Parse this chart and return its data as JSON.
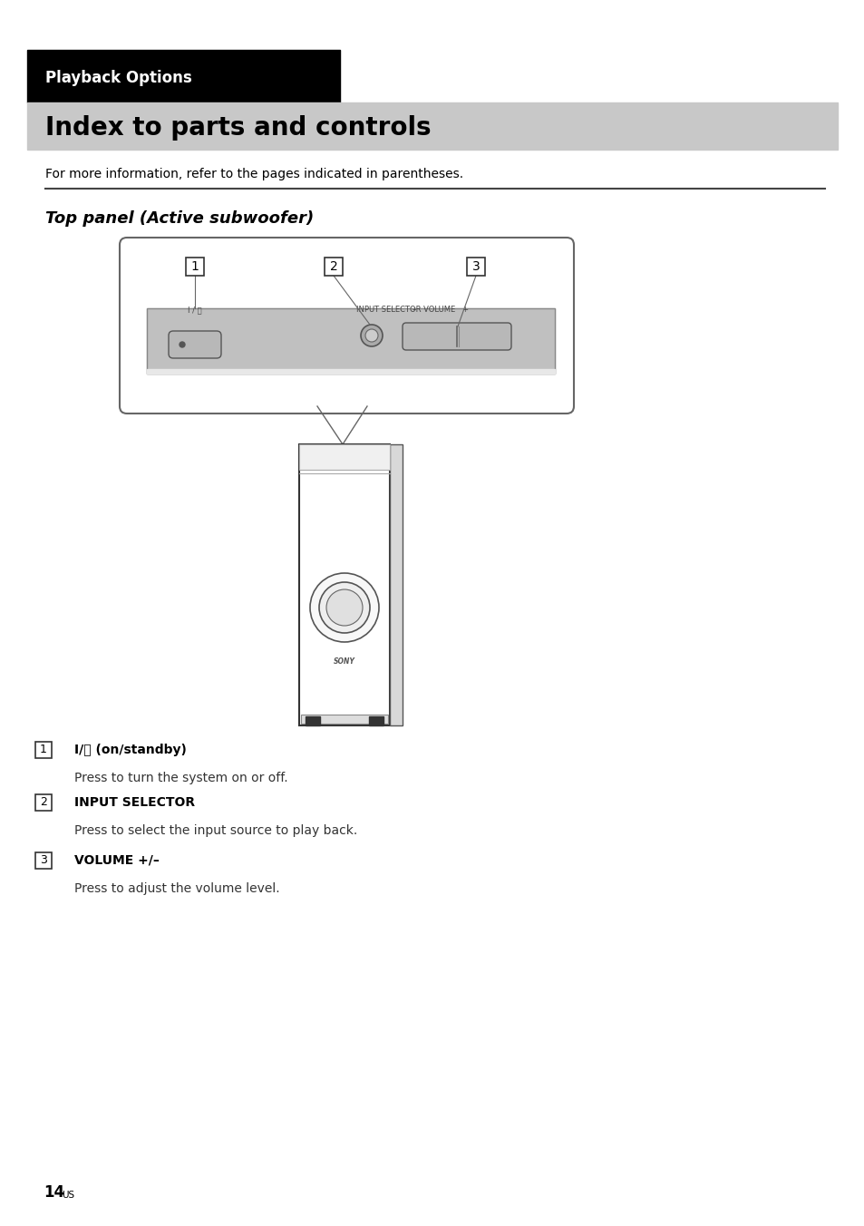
{
  "page_bg": "#ffffff",
  "header_black_bg": "#000000",
  "header_gray_bg": "#c8c8c8",
  "playback_options_text": "Playback Options",
  "playback_options_color": "#ffffff",
  "playback_options_fontsize": 12,
  "title_text": "Index to parts and controls",
  "title_fontsize": 20,
  "subtitle_text": "Top panel (Active subwoofer)",
  "subtitle_fontsize": 13,
  "info_text": "For more information, refer to the pages indicated in parentheses.",
  "info_fontsize": 10,
  "item1_label": "I/⏻ (on/standby)",
  "item1_desc": "Press to turn the system on or off.",
  "item2_label": "INPUT SELECTOR",
  "item2_desc": "Press to select the input source to play back.",
  "item3_label": "VOLUME +/–",
  "item3_desc": "Press to adjust the volume level.",
  "page_number": "14",
  "panel_bg": "#c0c0c0",
  "panel_border": "#555555",
  "device_bg": "#ffffff",
  "device_border": "#333333"
}
